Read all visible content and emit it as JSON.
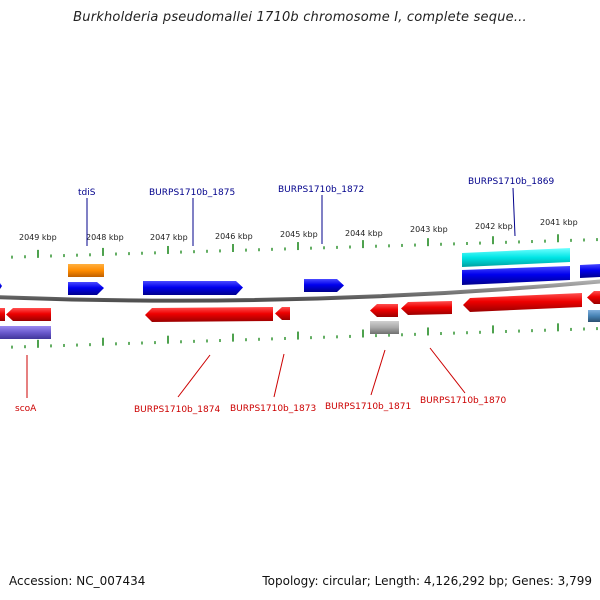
{
  "title": "Burkholderia pseudomallei 1710b chromosome I, complete seque...",
  "footer": {
    "accession": "Accession: NC_007434",
    "summary": "Topology: circular; Length: 4,126,292 bp; Genes: 3,799"
  },
  "scale": {
    "unit": "kbp",
    "ticks": [
      "2049 kbp",
      "2048 kbp",
      "2047 kbp",
      "2046 kbp",
      "2045 kbp",
      "2044 kbp",
      "2043 kbp",
      "2042 kbp",
      "2041 kbp"
    ]
  },
  "labels_plus": [
    "tdiS",
    "BURPS1710b_1875",
    "BURPS1710b_1872",
    "BURPS1710b_1869"
  ],
  "labels_minus": [
    "scoA",
    "BURPS1710b_1874",
    "BURPS1710b_1873",
    "BURPS1710b_1871",
    "BURPS1710b_1870"
  ],
  "colors": {
    "backbone": "#808080",
    "forward_gene": "#0000ee",
    "reverse_gene": "#ee0000",
    "orange_feature": "#ff8c00",
    "cyan_feature": "#00e5e5",
    "gray_feature": "#a9a9a9",
    "purple_feature": "#6a5acd",
    "steel_feature": "#4682b4",
    "tick": "#228b22",
    "plus_label": "#00008b",
    "minus_label": "#cc0000"
  }
}
